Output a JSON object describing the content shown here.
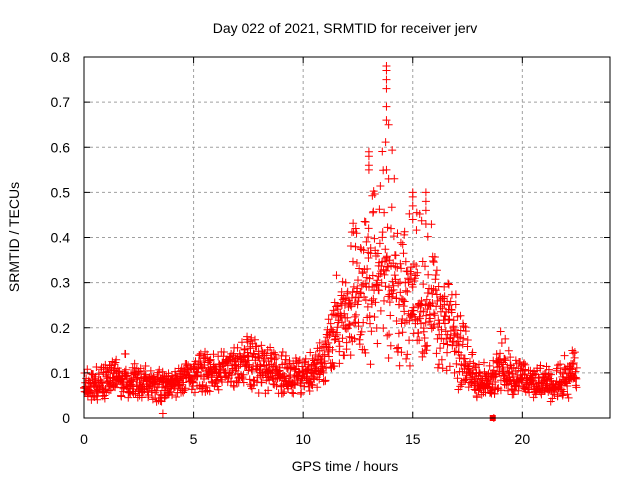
{
  "chart_data": {
    "type": "scatter",
    "title": "Day 022 of 2021, SRMTID for receiver jerv",
    "xlabel": "GPS time / hours",
    "ylabel": "SRMTID / TECUs",
    "xlim": [
      0,
      24
    ],
    "ylim": [
      0,
      0.8
    ],
    "xticks": [
      0,
      5,
      10,
      15,
      20
    ],
    "xtick_labels": [
      "0",
      "5",
      "10",
      "15",
      "20"
    ],
    "yticks": [
      0,
      0.1,
      0.2,
      0.3,
      0.4,
      0.5,
      0.6,
      0.7,
      0.8
    ],
    "ytick_labels": [
      "0",
      "0.1",
      "0.2",
      "0.3",
      "0.4",
      "0.5",
      "0.6",
      "0.7",
      "0.8"
    ],
    "grid": true,
    "legend": "none",
    "marker": "plus",
    "colors": {
      "points": "#ff0000",
      "grid": "#a0a0a0",
      "frame": "#000000"
    },
    "series": [
      {
        "name": "SRMTID",
        "envelope": [
          {
            "x": 0.0,
            "low": 0.03,
            "mid": 0.065,
            "high": 0.1
          },
          {
            "x": 0.5,
            "low": 0.02,
            "mid": 0.07,
            "high": 0.13
          },
          {
            "x": 1.0,
            "low": 0.04,
            "mid": 0.075,
            "high": 0.12
          },
          {
            "x": 1.5,
            "low": 0.04,
            "mid": 0.08,
            "high": 0.13
          },
          {
            "x": 2.0,
            "low": 0.04,
            "mid": 0.08,
            "high": 0.15
          },
          {
            "x": 2.5,
            "low": 0.04,
            "mid": 0.075,
            "high": 0.12
          },
          {
            "x": 3.0,
            "low": 0.04,
            "mid": 0.07,
            "high": 0.12
          },
          {
            "x": 3.5,
            "low": 0.01,
            "mid": 0.065,
            "high": 0.11
          },
          {
            "x": 4.0,
            "low": 0.04,
            "mid": 0.07,
            "high": 0.1
          },
          {
            "x": 4.5,
            "low": 0.04,
            "mid": 0.08,
            "high": 0.12
          },
          {
            "x": 5.0,
            "low": 0.04,
            "mid": 0.085,
            "high": 0.12
          },
          {
            "x": 5.5,
            "low": 0.05,
            "mid": 0.1,
            "high": 0.16
          },
          {
            "x": 6.0,
            "low": 0.06,
            "mid": 0.1,
            "high": 0.15
          },
          {
            "x": 6.5,
            "low": 0.05,
            "mid": 0.1,
            "high": 0.16
          },
          {
            "x": 7.0,
            "low": 0.06,
            "mid": 0.11,
            "high": 0.16
          },
          {
            "x": 7.5,
            "low": 0.06,
            "mid": 0.12,
            "high": 0.19
          },
          {
            "x": 8.0,
            "low": 0.05,
            "mid": 0.11,
            "high": 0.17
          },
          {
            "x": 8.5,
            "low": 0.05,
            "mid": 0.1,
            "high": 0.16
          },
          {
            "x": 9.0,
            "low": 0.05,
            "mid": 0.09,
            "high": 0.15
          },
          {
            "x": 9.5,
            "low": 0.04,
            "mid": 0.085,
            "high": 0.13
          },
          {
            "x": 10.0,
            "low": 0.05,
            "mid": 0.09,
            "high": 0.16
          },
          {
            "x": 10.5,
            "low": 0.06,
            "mid": 0.1,
            "high": 0.15
          },
          {
            "x": 11.0,
            "low": 0.07,
            "mid": 0.13,
            "high": 0.19
          },
          {
            "x": 11.5,
            "low": 0.1,
            "mid": 0.2,
            "high": 0.34
          },
          {
            "x": 12.0,
            "low": 0.1,
            "mid": 0.23,
            "high": 0.42
          },
          {
            "x": 12.5,
            "low": 0.11,
            "mid": 0.25,
            "high": 0.45
          },
          {
            "x": 13.0,
            "low": 0.1,
            "mid": 0.27,
            "high": 0.6
          },
          {
            "x": 13.5,
            "low": 0.12,
            "mid": 0.28,
            "high": 0.52
          },
          {
            "x": 13.8,
            "low": 0.12,
            "mid": 0.3,
            "high": 0.78
          },
          {
            "x": 14.5,
            "low": 0.1,
            "mid": 0.26,
            "high": 0.45
          },
          {
            "x": 15.0,
            "low": 0.1,
            "mid": 0.25,
            "high": 0.5
          },
          {
            "x": 15.5,
            "low": 0.08,
            "mid": 0.22,
            "high": 0.51
          },
          {
            "x": 16.0,
            "low": 0.08,
            "mid": 0.22,
            "high": 0.42
          },
          {
            "x": 16.5,
            "low": 0.07,
            "mid": 0.19,
            "high": 0.31
          },
          {
            "x": 17.0,
            "low": 0.06,
            "mid": 0.15,
            "high": 0.28
          },
          {
            "x": 17.5,
            "low": 0.04,
            "mid": 0.1,
            "high": 0.19
          },
          {
            "x": 18.0,
            "low": 0.03,
            "mid": 0.07,
            "high": 0.12
          },
          {
            "x": 18.5,
            "low": 0.04,
            "mid": 0.08,
            "high": 0.13
          },
          {
            "x": 19.0,
            "low": 0.04,
            "mid": 0.1,
            "high": 0.21
          },
          {
            "x": 19.5,
            "low": 0.04,
            "mid": 0.08,
            "high": 0.14
          },
          {
            "x": 20.0,
            "low": 0.05,
            "mid": 0.09,
            "high": 0.13
          },
          {
            "x": 20.5,
            "low": 0.04,
            "mid": 0.075,
            "high": 0.12
          },
          {
            "x": 21.0,
            "low": 0.03,
            "mid": 0.07,
            "high": 0.13
          },
          {
            "x": 21.5,
            "low": 0.03,
            "mid": 0.06,
            "high": 0.1
          },
          {
            "x": 22.0,
            "low": 0.04,
            "mid": 0.08,
            "high": 0.18
          },
          {
            "x": 22.5,
            "low": 0.05,
            "mid": 0.09,
            "high": 0.14
          }
        ],
        "notable_points": [
          {
            "x": 13.8,
            "y": 0.78
          },
          {
            "x": 13.8,
            "y": 0.77
          },
          {
            "x": 13.8,
            "y": 0.75
          },
          {
            "x": 13.8,
            "y": 0.73
          },
          {
            "x": 13.8,
            "y": 0.69
          },
          {
            "x": 13.8,
            "y": 0.66
          },
          {
            "x": 13.9,
            "y": 0.65
          },
          {
            "x": 13.0,
            "y": 0.59
          },
          {
            "x": 13.0,
            "y": 0.58
          },
          {
            "x": 13.0,
            "y": 0.56
          },
          {
            "x": 13.0,
            "y": 0.55
          },
          {
            "x": 13.8,
            "y": 0.55
          },
          {
            "x": 13.9,
            "y": 0.53
          },
          {
            "x": 15.0,
            "y": 0.5
          },
          {
            "x": 15.0,
            "y": 0.49
          },
          {
            "x": 15.6,
            "y": 0.5
          },
          {
            "x": 15.6,
            "y": 0.48
          },
          {
            "x": 15.6,
            "y": 0.46
          },
          {
            "x": 15.6,
            "y": 0.43
          },
          {
            "x": 15.0,
            "y": 0.47
          },
          {
            "x": 15.0,
            "y": 0.44
          },
          {
            "x": 12.4,
            "y": 0.42
          },
          {
            "x": 3.6,
            "y": 0.01
          },
          {
            "x": 18.7,
            "y": 0.0
          }
        ]
      }
    ],
    "outlier_square": {
      "x": 18.65,
      "y": 0.0
    }
  }
}
